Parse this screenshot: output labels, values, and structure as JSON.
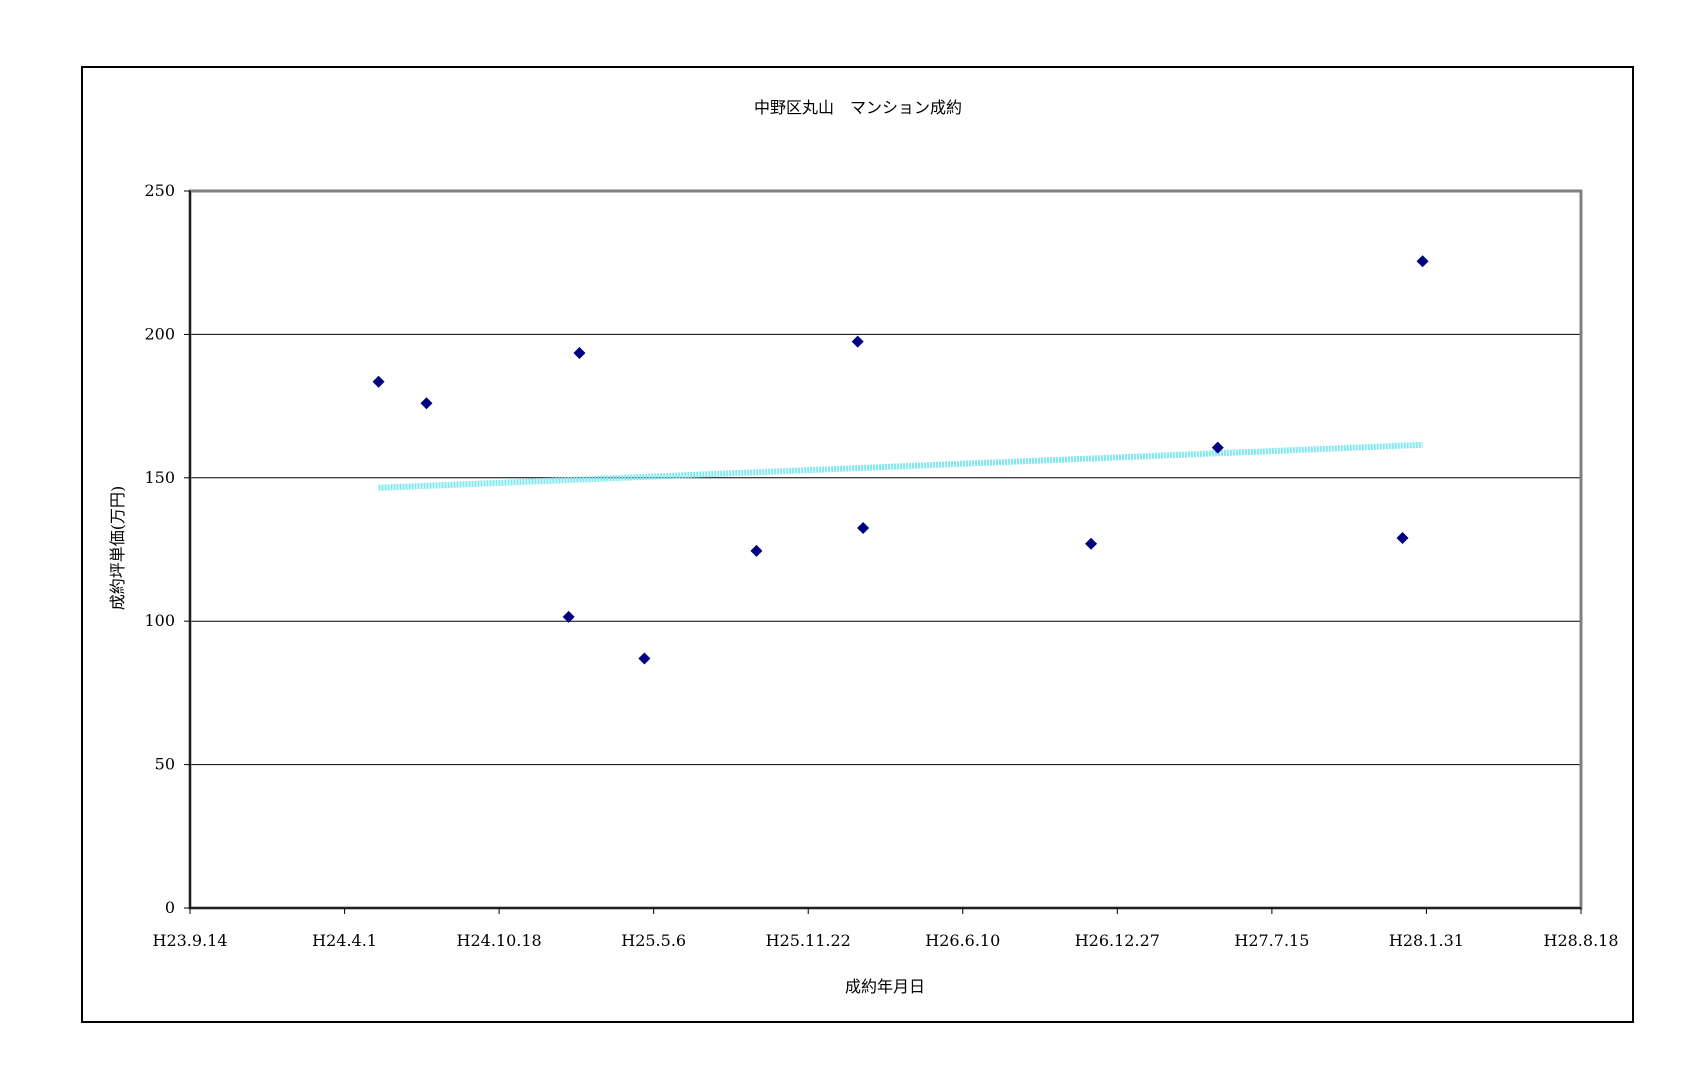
{
  "chart_data": {
    "type": "scatter",
    "title": "中野区丸山　マンション成約",
    "xlabel": "成約年月日",
    "ylabel": "成約坪単価(万円)",
    "ylim": [
      0,
      250
    ],
    "yticks": [
      0,
      50,
      100,
      150,
      200,
      250
    ],
    "xticks": [
      "H23.9.14",
      "H24.4.1",
      "H24.10.18",
      "H25.5.6",
      "H25.11.22",
      "H26.6.10",
      "H26.12.27",
      "H27.7.15",
      "H28.1.31",
      "H28.8.18"
    ],
    "xlim": [
      "H23.9.14",
      "H28.8.18"
    ],
    "grid": "horizontal",
    "legend": "none",
    "series": [
      {
        "marker": "diamond",
        "color": "#000080",
        "points": [
          {
            "x": "H24.5.15",
            "y": 183.5
          },
          {
            "x": "H24.7.16",
            "y": 176
          },
          {
            "x": "H25.1.16",
            "y": 101.5
          },
          {
            "x": "H25.1.30",
            "y": 193.5
          },
          {
            "x": "H25.4.24",
            "y": 87
          },
          {
            "x": "H25.9.16",
            "y": 124.5
          },
          {
            "x": "H26.1.25",
            "y": 197.5
          },
          {
            "x": "H26.2.1",
            "y": 132.5
          },
          {
            "x": "H26.11.23",
            "y": 127
          },
          {
            "x": "H27.5.6",
            "y": 160.5
          },
          {
            "x": "H27.12.31",
            "y": 129
          },
          {
            "x": "H28.1.26",
            "y": 225.5
          }
        ]
      }
    ],
    "trendline": {
      "color": "#7fe8f0",
      "from": {
        "x": "H24.5.15",
        "y": 146.5
      },
      "to": {
        "x": "H28.1.26",
        "y": 161.5
      }
    }
  }
}
